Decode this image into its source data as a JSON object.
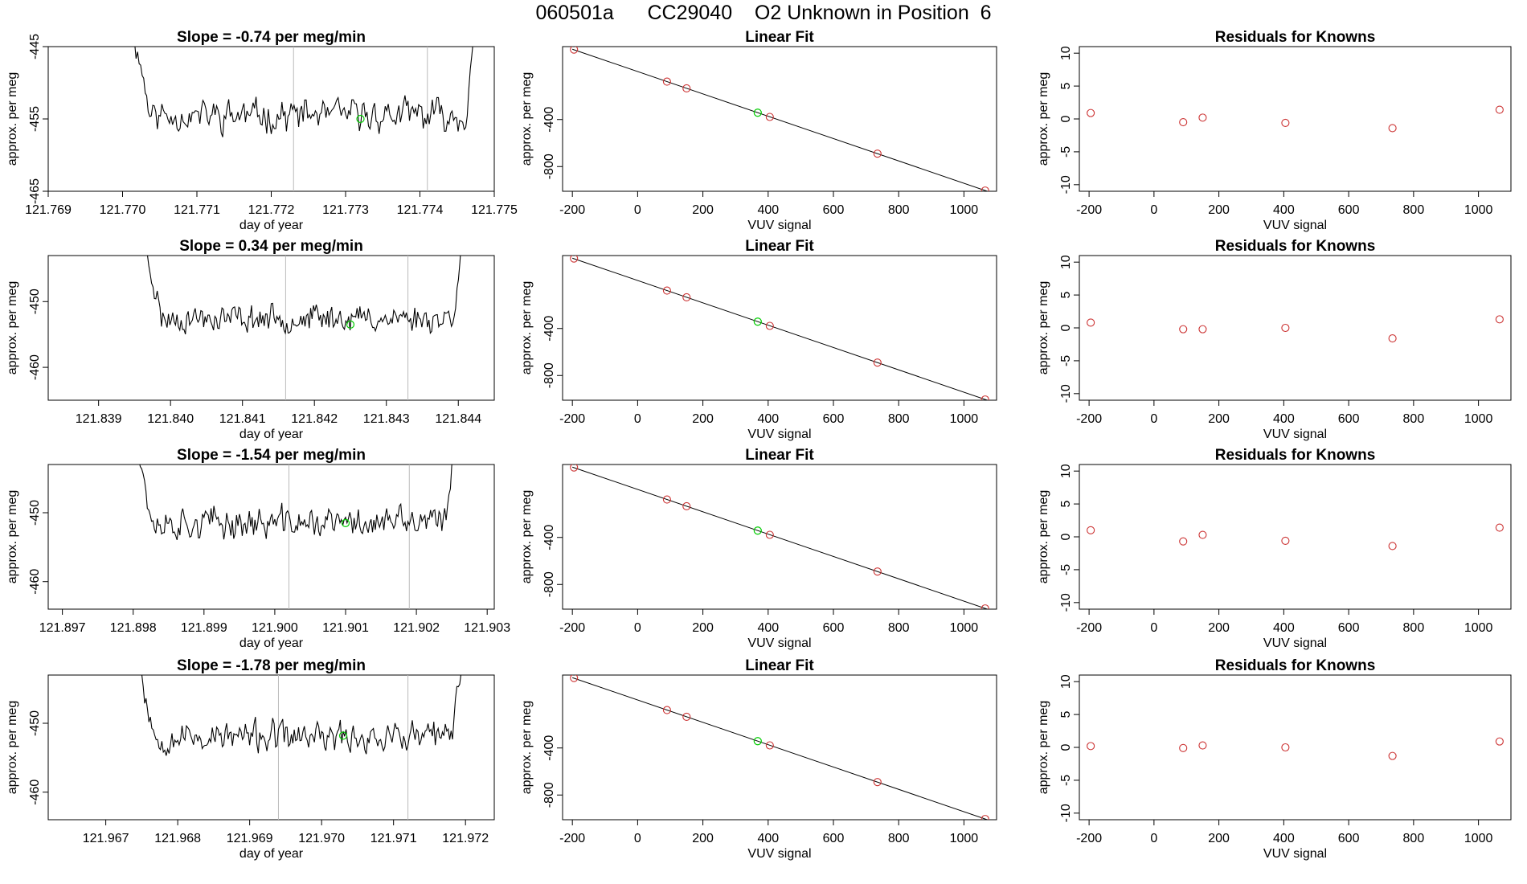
{
  "page": {
    "title_run": "060501a",
    "title_cylinder": "CC29040",
    "title_desc": "O2 Unknown in Position  6"
  },
  "chart_data": [
    {
      "panel": "timeseries",
      "row": 1,
      "type": "line",
      "title": "Slope =  -0.74  per meg/min",
      "xlabel": "day of year",
      "ylabel": "approx. per meg",
      "xlim": [
        121.769,
        121.775
      ],
      "xticks": [
        "121.769",
        "121.770",
        "121.771",
        "121.772",
        "121.773",
        "121.774",
        "121.775"
      ],
      "ylim": [
        -465,
        -445
      ],
      "yticks": [
        "-445",
        "-455",
        "-465"
      ],
      "ytick_values": [
        -445,
        -455,
        -465
      ],
      "vlines": [
        121.7723,
        121.7741
      ],
      "highlight": {
        "x": 121.7732,
        "y": -455.0,
        "color": "#00cc00"
      },
      "seed": 11,
      "x_start": 121.7701,
      "x_end": 121.7748,
      "baseline": -454.5,
      "noise": 2.6
    },
    {
      "panel": "linear_fit",
      "row": 1,
      "type": "scatter",
      "title": "Linear Fit",
      "xlabel": "VUV signal",
      "ylabel": "approx. per meg",
      "xlim": [
        -230,
        1100
      ],
      "xticks": [
        "-200",
        "0",
        "200",
        "400",
        "600",
        "800",
        "1000"
      ],
      "ytick_values": [
        -400,
        -800
      ],
      "yticks": [
        "-400",
        "-800"
      ],
      "ylim": [
        -1010,
        220
      ],
      "slope": -0.95,
      "intercept": 8,
      "points_x": [
        -195,
        90,
        150,
        405,
        735,
        1065
      ],
      "points_y": [
        195,
        -78,
        -135,
        -378,
        -690,
        -1004
      ],
      "point_color": "#cc3333",
      "unknown": {
        "x": 368,
        "y": -342,
        "color": "#00cc00"
      }
    },
    {
      "panel": "residuals",
      "row": 1,
      "type": "scatter",
      "title": "Residuals for Knowns",
      "xlabel": "VUV signal",
      "ylabel": "approx. per meg",
      "xlim": [
        -230,
        1100
      ],
      "xticks": [
        "-200",
        "0",
        "200",
        "400",
        "600",
        "800",
        "1000"
      ],
      "ylim": [
        -11,
        11
      ],
      "yticks": [
        "10",
        "5",
        "0",
        "-5",
        "-10"
      ],
      "ytick_values": [
        10,
        5,
        0,
        -5,
        -10
      ],
      "points_x": [
        -195,
        90,
        150,
        405,
        735,
        1065
      ],
      "points_y": [
        0.9,
        -0.5,
        0.2,
        -0.6,
        -1.4,
        1.4
      ],
      "point_color": "#cc3333"
    },
    {
      "panel": "timeseries",
      "row": 2,
      "type": "line",
      "title": "Slope =  0.34  per meg/min",
      "xlabel": "day of year",
      "ylabel": "approx. per meg",
      "xlim": [
        121.8383,
        121.8445
      ],
      "xticks": [
        "121.839",
        "121.840",
        "121.841",
        "121.842",
        "121.843",
        "121.844"
      ],
      "ylim": [
        -465,
        -443
      ],
      "yticks": [
        "-450",
        "-460"
      ],
      "ytick_values": [
        -450,
        -460
      ],
      "vlines": [
        121.8416,
        121.8433
      ],
      "highlight": {
        "x": 121.8425,
        "y": -453.5,
        "color": "#00cc00"
      },
      "seed": 23,
      "x_start": 121.8396,
      "x_end": 121.8441,
      "baseline": -452.5,
      "noise": 2.4
    },
    {
      "panel": "linear_fit",
      "row": 2,
      "type": "scatter",
      "title": "Linear Fit",
      "xlabel": "VUV signal",
      "ylabel": "approx. per meg",
      "xlim": [
        -230,
        1100
      ],
      "xticks": [
        "-200",
        "0",
        "200",
        "400",
        "600",
        "800",
        "1000"
      ],
      "ytick_values": [
        -400,
        -800
      ],
      "yticks": [
        "-400",
        "-800"
      ],
      "ylim": [
        -1010,
        220
      ],
      "slope": -0.95,
      "intercept": 8,
      "points_x": [
        -195,
        90,
        150,
        405,
        735,
        1065
      ],
      "points_y": [
        195,
        -78,
        -135,
        -378,
        -690,
        -1004
      ],
      "point_color": "#cc3333",
      "unknown": {
        "x": 368,
        "y": -342,
        "color": "#00cc00"
      }
    },
    {
      "panel": "residuals",
      "row": 2,
      "type": "scatter",
      "title": "Residuals for Knowns",
      "xlabel": "VUV signal",
      "ylabel": "approx. per meg",
      "xlim": [
        -230,
        1100
      ],
      "xticks": [
        "-200",
        "0",
        "200",
        "400",
        "600",
        "800",
        "1000"
      ],
      "ylim": [
        -11,
        11
      ],
      "yticks": [
        "10",
        "5",
        "0",
        "-5",
        "-10"
      ],
      "ytick_values": [
        10,
        5,
        0,
        -5,
        -10
      ],
      "points_x": [
        -195,
        90,
        150,
        405,
        735,
        1065
      ],
      "points_y": [
        0.8,
        -0.2,
        -0.2,
        0.0,
        -1.6,
        1.3
      ],
      "point_color": "#cc3333"
    },
    {
      "panel": "timeseries",
      "row": 3,
      "type": "line",
      "title": "Slope =  -1.54  per meg/min",
      "xlabel": "day of year",
      "ylabel": "approx. per meg",
      "xlim": [
        121.8968,
        121.9031
      ],
      "xticks": [
        "121.897",
        "121.898",
        "121.899",
        "121.900",
        "121.901",
        "121.902",
        "121.903"
      ],
      "ylim": [
        -464,
        -443
      ],
      "yticks": [
        "-450",
        "-460"
      ],
      "ytick_values": [
        -450,
        -460
      ],
      "vlines": [
        121.9002,
        121.9019
      ],
      "highlight": {
        "x": 121.901,
        "y": -451.5,
        "color": "#00cc00"
      },
      "seed": 37,
      "x_start": 121.898,
      "x_end": 121.9026,
      "baseline": -451.5,
      "noise": 2.7
    },
    {
      "panel": "linear_fit",
      "row": 3,
      "type": "scatter",
      "title": "Linear Fit",
      "xlabel": "VUV signal",
      "ylabel": "approx. per meg",
      "xlim": [
        -230,
        1100
      ],
      "xticks": [
        "-200",
        "0",
        "200",
        "400",
        "600",
        "800",
        "1000"
      ],
      "ytick_values": [
        -400,
        -800
      ],
      "yticks": [
        "-400",
        "-800"
      ],
      "ylim": [
        -1010,
        220
      ],
      "slope": -0.95,
      "intercept": 8,
      "points_x": [
        -195,
        90,
        150,
        405,
        735,
        1065
      ],
      "points_y": [
        195,
        -78,
        -135,
        -378,
        -690,
        -1004
      ],
      "point_color": "#cc3333",
      "unknown": {
        "x": 368,
        "y": -342,
        "color": "#00cc00"
      }
    },
    {
      "panel": "residuals",
      "row": 3,
      "type": "scatter",
      "title": "Residuals for Knowns",
      "xlabel": "VUV signal",
      "ylabel": "approx. per meg",
      "xlim": [
        -230,
        1100
      ],
      "xticks": [
        "-200",
        "0",
        "200",
        "400",
        "600",
        "800",
        "1000"
      ],
      "ylim": [
        -11,
        11
      ],
      "yticks": [
        "10",
        "5",
        "0",
        "-5",
        "-10"
      ],
      "ytick_values": [
        10,
        5,
        0,
        -5,
        -10
      ],
      "points_x": [
        -195,
        90,
        150,
        405,
        735,
        1065
      ],
      "points_y": [
        1.0,
        -0.7,
        0.3,
        -0.6,
        -1.4,
        1.4
      ],
      "point_color": "#cc3333"
    },
    {
      "panel": "timeseries",
      "row": 4,
      "type": "line",
      "title": "Slope =  -1.78  per meg/min",
      "xlabel": "day of year",
      "ylabel": "approx. per meg",
      "xlim": [
        121.9662,
        121.9724
      ],
      "xticks": [
        "121.967",
        "121.968",
        "121.969",
        "121.970",
        "121.971",
        "121.972"
      ],
      "ylim": [
        -464,
        -443
      ],
      "yticks": [
        "-450",
        "-460"
      ],
      "ytick_values": [
        -450,
        -460
      ],
      "vlines": [
        121.9694,
        121.9712
      ],
      "highlight": {
        "x": 121.9703,
        "y": -451.8,
        "color": "#00cc00"
      },
      "seed": 53,
      "x_start": 121.9674,
      "x_end": 121.972,
      "baseline": -452.0,
      "noise": 2.6
    },
    {
      "panel": "linear_fit",
      "row": 4,
      "type": "scatter",
      "title": "Linear Fit",
      "xlabel": "VUV signal",
      "ylabel": "approx. per meg",
      "xlim": [
        -230,
        1100
      ],
      "xticks": [
        "-200",
        "0",
        "200",
        "400",
        "600",
        "800",
        "1000"
      ],
      "ytick_values": [
        -400,
        -800
      ],
      "yticks": [
        "-400",
        "-800"
      ],
      "ylim": [
        -1010,
        220
      ],
      "slope": -0.95,
      "intercept": 8,
      "points_x": [
        -195,
        90,
        150,
        405,
        735,
        1065
      ],
      "points_y": [
        195,
        -78,
        -135,
        -378,
        -690,
        -1004
      ],
      "point_color": "#cc3333",
      "unknown": {
        "x": 368,
        "y": -342,
        "color": "#00cc00"
      }
    },
    {
      "panel": "residuals",
      "row": 4,
      "type": "scatter",
      "title": "Residuals for Knowns",
      "xlabel": "VUV signal",
      "ylabel": "approx. per meg",
      "xlim": [
        -230,
        1100
      ],
      "xticks": [
        "-200",
        "0",
        "200",
        "400",
        "600",
        "800",
        "1000"
      ],
      "ylim": [
        -11,
        11
      ],
      "yticks": [
        "10",
        "5",
        "0",
        "-5",
        "-10"
      ],
      "ytick_values": [
        10,
        5,
        0,
        -5,
        -10
      ],
      "points_x": [
        -195,
        90,
        150,
        405,
        735,
        1065
      ],
      "points_y": [
        0.2,
        -0.1,
        0.3,
        0.0,
        -1.3,
        0.9
      ],
      "point_color": "#cc3333"
    }
  ]
}
